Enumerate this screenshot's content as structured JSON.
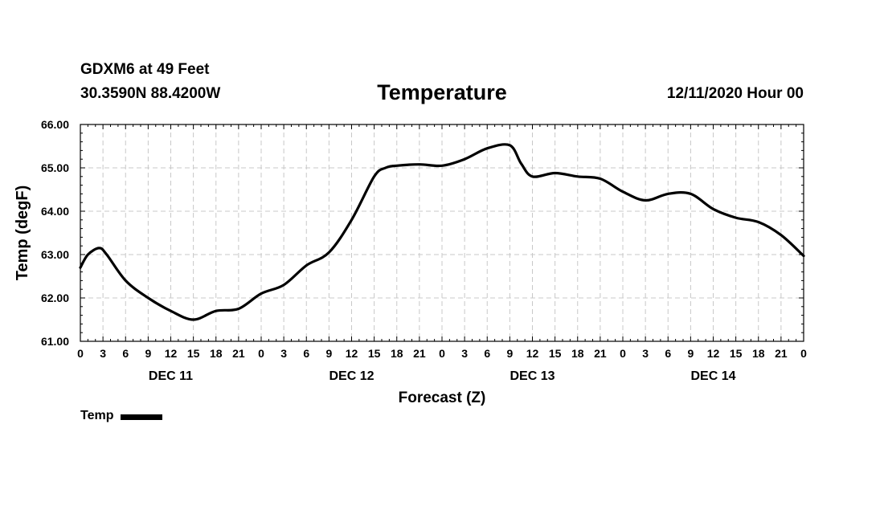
{
  "header": {
    "station": "GDXM6 at 49 Feet",
    "coords": "30.3590N 88.4200W",
    "title": "Temperature",
    "datetime": "12/11/2020 Hour 00"
  },
  "chart_data": {
    "type": "line",
    "title": "Temperature",
    "xlabel": "Forecast (Z)",
    "ylabel": "Temp (degF)",
    "ylim": [
      61.0,
      66.0
    ],
    "xlim": [
      0,
      96
    ],
    "x_unit": "hours since DEC 11 00Z",
    "y_ticks": [
      "61.00",
      "62.00",
      "63.00",
      "64.00",
      "65.00",
      "66.00"
    ],
    "x_tick_labels": [
      "0",
      "3",
      "6",
      "9",
      "12",
      "15",
      "18",
      "21",
      "0",
      "3",
      "6",
      "9",
      "12",
      "15",
      "18",
      "21",
      "0",
      "3",
      "6",
      "9",
      "12",
      "15",
      "18",
      "21",
      "0",
      "3",
      "6",
      "9",
      "12",
      "15",
      "18",
      "21",
      "0"
    ],
    "day_labels": [
      "DEC 11",
      "DEC 12",
      "DEC 13",
      "DEC 14"
    ],
    "grid": true,
    "legend_position": "bottom-left",
    "series": [
      {
        "name": "Temp",
        "color": "#000000",
        "x": [
          0,
          1,
          2.5,
          3.5,
          6,
          9,
          12,
          15,
          18,
          21,
          24,
          27,
          30,
          33,
          36,
          39,
          40.5,
          42,
          45,
          48,
          51,
          54,
          57,
          58.5,
          60,
          63,
          66,
          69,
          72,
          75,
          78,
          81,
          84,
          87,
          90,
          93,
          96
        ],
        "values": [
          62.7,
          63.0,
          63.15,
          63.0,
          62.4,
          62.0,
          61.7,
          61.5,
          61.7,
          61.75,
          62.1,
          62.3,
          62.75,
          63.05,
          63.8,
          64.8,
          65.0,
          65.05,
          65.08,
          65.05,
          65.2,
          65.45,
          65.52,
          65.1,
          64.8,
          64.88,
          64.8,
          64.75,
          64.45,
          64.25,
          64.4,
          64.4,
          64.05,
          63.85,
          63.75,
          63.45,
          62.97
        ]
      }
    ]
  },
  "legend": {
    "label": "Temp"
  }
}
